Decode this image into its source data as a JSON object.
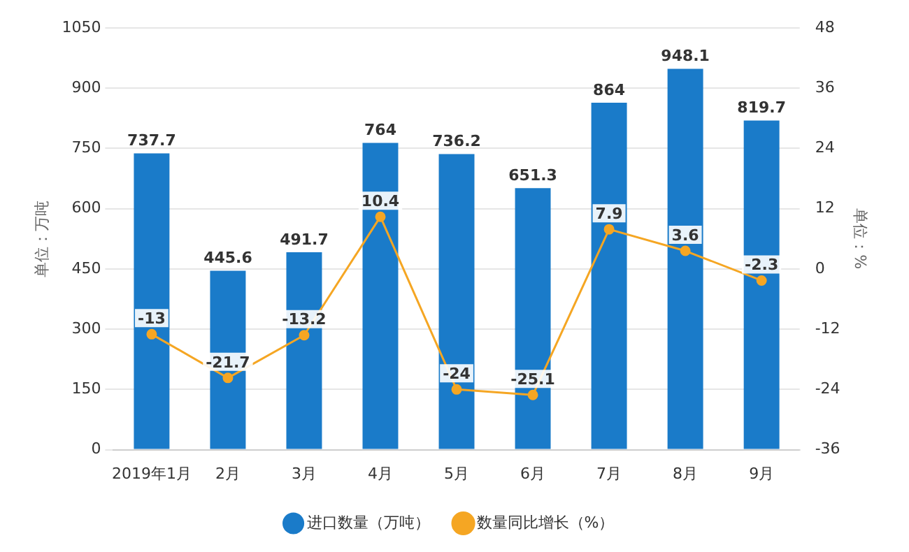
{
  "chart_data": {
    "type": "bar",
    "categories": [
      "2019年1月",
      "2月",
      "3月",
      "4月",
      "5月",
      "6月",
      "7月",
      "8月",
      "9月"
    ],
    "ylabel": "单位：万吨",
    "y2label": "单位：%",
    "series": [
      {
        "name": "进口数量（万吨）",
        "color": "#1a7bc9",
        "values": [
          737.7,
          445.6,
          491.7,
          764,
          736.2,
          651.3,
          864,
          948.1,
          819.7
        ]
      },
      {
        "name": "数量同比增长（%）",
        "type": "line",
        "axis": "y2",
        "color": "#f5a623",
        "values": [
          -13,
          -21.7,
          -13.2,
          10.4,
          -24,
          -25.1,
          7.9,
          3.6,
          -2.3
        ]
      }
    ],
    "ylim": [
      0,
      1050
    ],
    "yticks": [
      0,
      150,
      300,
      450,
      600,
      750,
      900,
      1050
    ],
    "y2lim": [
      -36,
      48
    ],
    "y2ticks": [
      -36,
      -24,
      -12,
      0,
      12,
      24,
      36,
      48
    ],
    "grid": "y",
    "legend": "bottom",
    "marker": "circle",
    "line_style": "solid",
    "data_labels": true
  }
}
